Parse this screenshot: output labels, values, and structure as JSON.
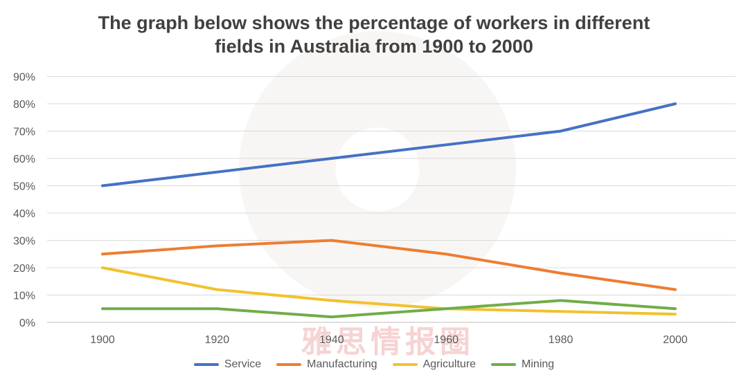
{
  "title_line1": "The graph below shows the percentage of workers in different",
  "title_line2": "fields in Australia from 1900 to 2000",
  "watermark": "雅思情报圈",
  "chart_data": {
    "type": "line",
    "title": "The graph below shows the percentage of workers in different fields in Australia from 1900 to 2000",
    "x": [
      1900,
      1920,
      1940,
      1960,
      1980,
      2000
    ],
    "x_tick_labels": [
      "1900",
      "1920",
      "1940",
      "1960",
      "1980",
      "2000"
    ],
    "y_tick_labels": [
      "0%",
      "10%",
      "20%",
      "30%",
      "40%",
      "50%",
      "60%",
      "70%",
      "80%",
      "90%"
    ],
    "ylim": [
      0,
      90
    ],
    "grid": true,
    "legend_position": "bottom",
    "series": [
      {
        "name": "Service",
        "color": "#4472C4",
        "values": [
          50,
          55,
          60,
          65,
          70,
          80
        ]
      },
      {
        "name": "Manufacturing",
        "color": "#ED7D31",
        "values": [
          25,
          28,
          30,
          25,
          18,
          12
        ]
      },
      {
        "name": "Agriculture",
        "color": "#F2C12E",
        "values": [
          20,
          12,
          8,
          5,
          4,
          3
        ]
      },
      {
        "name": "Mining",
        "color": "#70AD47",
        "values": [
          5,
          5,
          2,
          5,
          8,
          5
        ]
      }
    ]
  }
}
